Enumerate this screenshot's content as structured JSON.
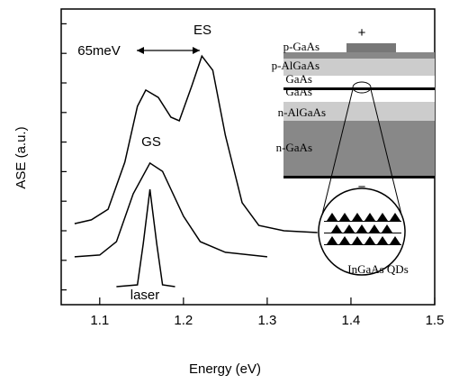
{
  "chart_data": {
    "type": "line",
    "xlabel": "Energy (eV)",
    "ylabel": "ASE (a.u.)",
    "xlim": [
      1.054,
      1.5
    ],
    "xticks": [
      1.1,
      1.2,
      1.3,
      1.4,
      1.5
    ],
    "ylim": [
      0,
      100
    ],
    "yticks": [
      5,
      15,
      25,
      35,
      45,
      55,
      65,
      75,
      85,
      95
    ],
    "series": [
      {
        "color": "#000000",
        "x": [
          1.07,
          1.09,
          1.11,
          1.13,
          1.145,
          1.155,
          1.17,
          1.185,
          1.195,
          1.21,
          1.222,
          1.235,
          1.25,
          1.27,
          1.29,
          1.32,
          1.36
        ],
        "values": [
          27.4,
          28.7,
          32.3,
          48.2,
          67.1,
          72.6,
          70.1,
          63.4,
          62.2,
          74.1,
          84.1,
          79.3,
          57.3,
          34.5,
          26.8,
          25.0,
          24.4
        ]
      },
      {
        "color": "#000000",
        "x": [
          1.07,
          1.1,
          1.12,
          1.14,
          1.16,
          1.175,
          1.2,
          1.22,
          1.25,
          1.3
        ],
        "values": [
          16.2,
          16.8,
          21.3,
          37.5,
          47.9,
          45.1,
          29.9,
          21.3,
          17.7,
          16.2
        ]
      },
      {
        "color": "#000000",
        "x": [
          1.12,
          1.145,
          1.152,
          1.16,
          1.168,
          1.175,
          1.19
        ],
        "values": [
          6.1,
          6.7,
          20.7,
          39.0,
          20.7,
          6.7,
          6.1
        ]
      }
    ],
    "annotations": [
      "ES",
      "65meV",
      "GS",
      "laser"
    ],
    "inset": {
      "layers": [
        "p-GaAs",
        "p-AlGaAs",
        "GaAs",
        "GaAs",
        "n-AlGaAs",
        "n-GaAs"
      ],
      "plus": "+",
      "minus": "−",
      "caption": "InGaAs QDs"
    }
  }
}
